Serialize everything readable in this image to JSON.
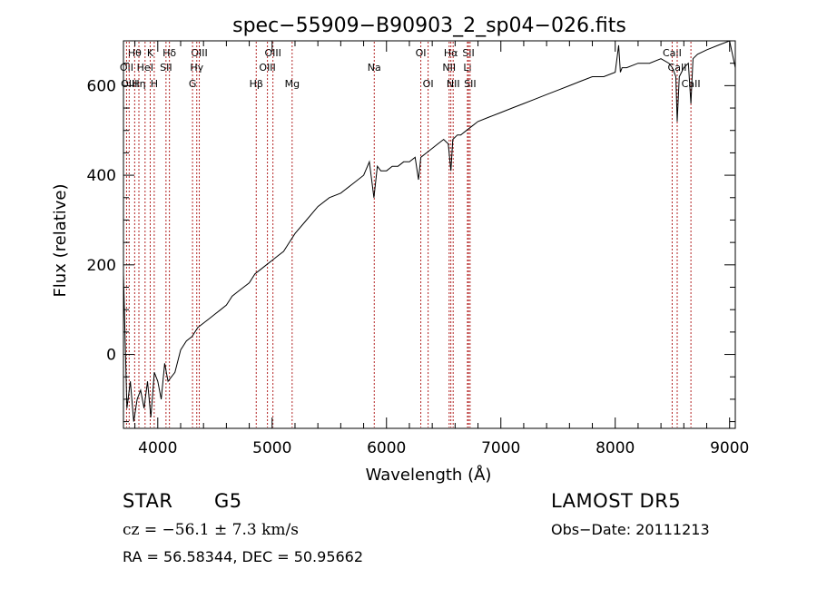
{
  "chart_data": {
    "type": "line",
    "title": "spec−55909−B90903_2_sp04−026.fits",
    "xlabel": "Wavelength (Å)",
    "ylabel": "Flux (relative)",
    "xlim": [
      3700,
      9050
    ],
    "ylim": [
      -165,
      700
    ],
    "xticks": [
      4000,
      5000,
      6000,
      7000,
      8000,
      9000
    ],
    "yticks": [
      0,
      200,
      400,
      600
    ],
    "grid": false,
    "series": [
      {
        "x": [
          3700,
          3730,
          3760,
          3790,
          3820,
          3850,
          3880,
          3910,
          3940,
          3970,
          4000,
          4030,
          4060,
          4090,
          4120,
          4150,
          4200,
          4250,
          4300,
          4350,
          4400,
          4450,
          4500,
          4550,
          4600,
          4650,
          4700,
          4750,
          4800,
          4850,
          4900,
          4950,
          5000,
          5050,
          5100,
          5150,
          5200,
          5300,
          5400,
          5500,
          5600,
          5700,
          5800,
          5850,
          5890,
          5920,
          5950,
          6000,
          6050,
          6100,
          6150,
          6200,
          6250,
          6280,
          6300,
          6350,
          6400,
          6450,
          6500,
          6540,
          6563,
          6580,
          6620,
          6650,
          6700,
          6750,
          6800,
          6900,
          7000,
          7100,
          7200,
          7300,
          7400,
          7500,
          7600,
          7700,
          7800,
          7900,
          8000,
          8030,
          8045,
          8060,
          8100,
          8200,
          8300,
          8400,
          8470,
          8500,
          8530,
          8542,
          8560,
          8600,
          8640,
          8662,
          8680,
          8720,
          8800,
          8900,
          9000,
          9050
        ],
        "y": [
          180,
          -120,
          -60,
          -150,
          -100,
          -80,
          -120,
          -60,
          -140,
          -40,
          -60,
          -100,
          -20,
          -60,
          -50,
          -40,
          10,
          30,
          40,
          60,
          70,
          80,
          90,
          100,
          110,
          130,
          140,
          150,
          160,
          180,
          190,
          200,
          210,
          220,
          230,
          250,
          270,
          300,
          330,
          350,
          360,
          380,
          400,
          430,
          350,
          420,
          410,
          410,
          420,
          420,
          430,
          430,
          440,
          390,
          440,
          450,
          460,
          470,
          480,
          470,
          410,
          480,
          490,
          490,
          500,
          510,
          520,
          530,
          540,
          550,
          560,
          570,
          580,
          590,
          600,
          610,
          620,
          620,
          630,
          690,
          630,
          640,
          640,
          650,
          650,
          660,
          650,
          640,
          620,
          520,
          620,
          640,
          650,
          560,
          660,
          670,
          680,
          690,
          700,
          640
        ]
      }
    ],
    "line_markers": [
      {
        "label": "Hθ",
        "x": 3798,
        "row": 1
      },
      {
        "label": "OII",
        "x": 3727,
        "row": 2
      },
      {
        "label": "OIII",
        "x": 3750,
        "row": 3
      },
      {
        "label": "K",
        "x": 3934,
        "row": 1
      },
      {
        "label": "HeI",
        "x": 3889,
        "row": 2
      },
      {
        "label": "Hη",
        "x": 3835,
        "row": 3
      },
      {
        "label": "H",
        "x": 3969,
        "row": 3
      },
      {
        "label": "Hδ",
        "x": 4102,
        "row": 1
      },
      {
        "label": "SII",
        "x": 4072,
        "row": 2
      },
      {
        "label": "OIII",
        "x": 4363,
        "row": 1
      },
      {
        "label": "Hγ",
        "x": 4341,
        "row": 2
      },
      {
        "label": "G",
        "x": 4304,
        "row": 3
      },
      {
        "label": "OIII",
        "x": 5007,
        "row": 1
      },
      {
        "label": "OIII",
        "x": 4959,
        "row": 2
      },
      {
        "label": "Hβ",
        "x": 4861,
        "row": 3
      },
      {
        "label": "Mg",
        "x": 5175,
        "row": 3
      },
      {
        "label": "Na",
        "x": 5893,
        "row": 2
      },
      {
        "label": "OI",
        "x": 6300,
        "row": 1
      },
      {
        "label": "OI",
        "x": 6364,
        "row": 3
      },
      {
        "label": "Hα",
        "x": 6563,
        "row": 1
      },
      {
        "label": "NII",
        "x": 6548,
        "row": 2
      },
      {
        "label": "NII",
        "x": 6583,
        "row": 3
      },
      {
        "label": "SII",
        "x": 6717,
        "row": 1
      },
      {
        "label": "Li",
        "x": 6708,
        "row": 2
      },
      {
        "label": "SII",
        "x": 6731,
        "row": 3
      },
      {
        "label": "CaII",
        "x": 8498,
        "row": 1
      },
      {
        "label": "CaII",
        "x": 8542,
        "row": 2
      },
      {
        "label": "CaII",
        "x": 8662,
        "row": 3
      }
    ]
  },
  "info": {
    "class": "STAR",
    "subclass": "G5",
    "survey": "LAMOST DR5",
    "redshift": "cz = −56.1 ± 7.3 km/s",
    "obs_date": "Obs−Date: 20111213",
    "coords": "RA =  56.58344, DEC =  50.95662"
  },
  "colors": {
    "axis": "#000000",
    "spectrum": "#000000",
    "marker": "#b22222"
  }
}
